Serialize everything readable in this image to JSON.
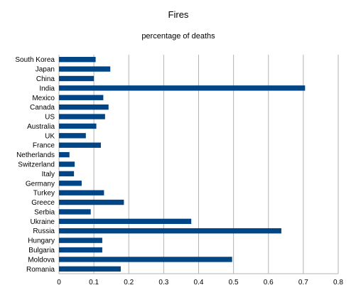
{
  "colors": {
    "bar": "#004586",
    "grid": "#b3b3b3",
    "background": "#ffffff"
  },
  "chart_data": {
    "type": "bar",
    "orientation": "horizontal",
    "title": "Fires",
    "subtitle": "percentage of deaths",
    "xlabel": "",
    "ylabel": "",
    "xlim": [
      0,
      0.8
    ],
    "xticks": [
      "0",
      "0.1",
      "0.2",
      "0.3",
      "0.4",
      "0.5",
      "0.6",
      "0.7",
      "0.8"
    ],
    "grid": true,
    "legend": "none",
    "categories": [
      "South Korea",
      "Japan",
      "China",
      "India",
      "Mexico",
      "Canada",
      "US",
      "Australia",
      "UK",
      "France",
      "Netherlands",
      "Switzerland",
      "Italy",
      "Germany",
      "Turkey",
      "Greece",
      "Serbia",
      "Ukraine",
      "Russia",
      "Hungary",
      "Bulgaria",
      "Moldova",
      "Romania"
    ],
    "values": [
      0.105,
      0.147,
      0.1,
      0.705,
      0.127,
      0.142,
      0.132,
      0.107,
      0.077,
      0.12,
      0.03,
      0.045,
      0.043,
      0.065,
      0.129,
      0.186,
      0.091,
      0.379,
      0.637,
      0.124,
      0.124,
      0.496,
      0.177
    ]
  }
}
